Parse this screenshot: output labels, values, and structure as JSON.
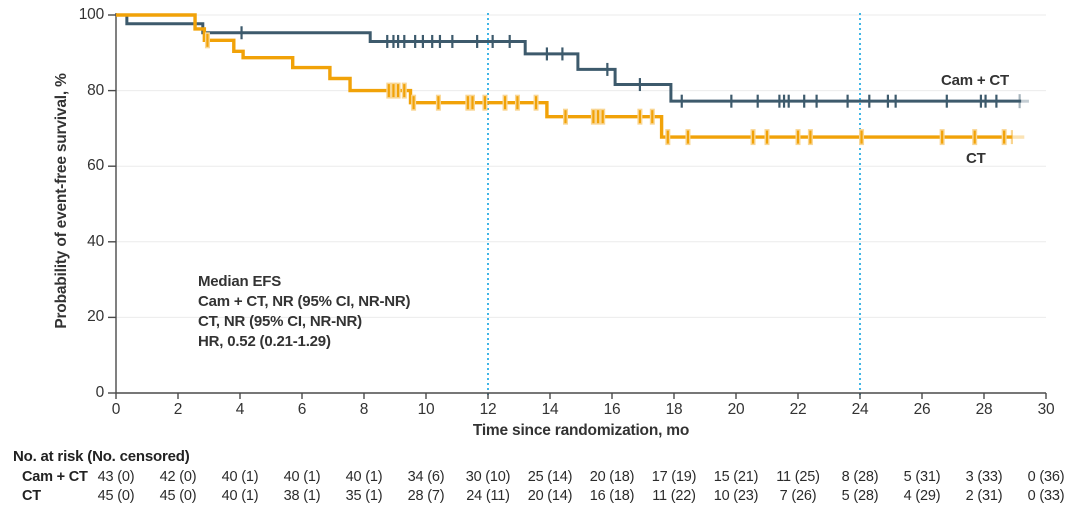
{
  "chart_data": {
    "type": "line",
    "subtype": "kaplan-meier-step-curves",
    "title": "",
    "xlabel": "Time since randomization, mo",
    "ylabel": "Probability of event-free survival, %",
    "xlim": [
      0,
      30
    ],
    "ylim": [
      0,
      100
    ],
    "x_ticks": [
      0,
      2,
      4,
      6,
      8,
      10,
      12,
      14,
      16,
      18,
      20,
      22,
      24,
      26,
      28,
      30
    ],
    "y_ticks": [
      0,
      20,
      40,
      60,
      80,
      100
    ],
    "grid": "horizontal-light",
    "grid_color": "#ebebeb",
    "axis_color": "#4a4a4a",
    "reference_lines_x": [
      12,
      24
    ],
    "reference_line_color": "#41b6e6",
    "series": [
      {
        "name": "Cam + CT",
        "color": "#3d5a6c",
        "steps": [
          [
            0,
            100
          ],
          [
            0.35,
            97.7
          ],
          [
            2.8,
            95.3
          ],
          [
            8.2,
            93
          ],
          [
            13.2,
            89.7
          ],
          [
            14.9,
            85.6
          ],
          [
            16.1,
            81.6
          ],
          [
            17.9,
            77.2
          ]
        ],
        "end_x": 29.2,
        "tail_x": 29.45,
        "tail_censor_x": 29.15,
        "censor_x": [
          4.05,
          8.75,
          8.95,
          9.1,
          9.3,
          9.65,
          9.9,
          10.2,
          10.45,
          10.85,
          11.65,
          12.15,
          12.7,
          13.9,
          14.4,
          15.85,
          16.9,
          18.25,
          19.85,
          20.7,
          21.4,
          21.55,
          21.7,
          22.2,
          22.6,
          23.6,
          24.3,
          24.9,
          25.15,
          26.8,
          27.9,
          28.05,
          28.4
        ]
      },
      {
        "name": "CT",
        "color": "#f1a208",
        "halo_color": "#f9d693",
        "steps": [
          [
            0,
            100
          ],
          [
            2.55,
            96.3
          ],
          [
            2.85,
            93.3
          ],
          [
            3.8,
            90.4
          ],
          [
            4.1,
            88.7
          ],
          [
            5.7,
            86.1
          ],
          [
            6.9,
            83.2
          ],
          [
            7.55,
            80
          ],
          [
            9.5,
            76.8
          ],
          [
            13.9,
            73.1
          ],
          [
            17.6,
            67.7
          ]
        ],
        "end_x": 28.9,
        "tail_x": 29.3,
        "tail_censor_x": 28.9,
        "censor_x": [
          2.95,
          8.8,
          8.95,
          9.1,
          9.3,
          9.6,
          10.4,
          11.35,
          11.5,
          11.9,
          12.55,
          12.95,
          13.55,
          14.5,
          15.4,
          15.55,
          15.7,
          16.9,
          17.3,
          17.8,
          18.45,
          20.55,
          21.0,
          22.0,
          22.4,
          24.05,
          26.65,
          27.7,
          28.65
        ]
      }
    ],
    "annotations": [
      "Median EFS",
      "Cam + CT, NR (95% CI, NR-NR)",
      "CT, NR (95% CI, NR-NR)",
      "HR, 0.52 (0.21-1.29)"
    ]
  },
  "risk_table": {
    "header": "No. at risk (No. censored)",
    "months": [
      0,
      2,
      4,
      6,
      8,
      10,
      12,
      14,
      16,
      18,
      20,
      22,
      24,
      26,
      28,
      30
    ],
    "rows": [
      {
        "label": "Cam + CT",
        "values": [
          "43 (0)",
          "42 (0)",
          "40 (1)",
          "40 (1)",
          "40 (1)",
          "34 (6)",
          "30 (10)",
          "25 (14)",
          "20 (18)",
          "17 (19)",
          "15 (21)",
          "11 (25)",
          "8 (28)",
          "5 (31)",
          "3 (33)",
          "0 (36)"
        ]
      },
      {
        "label": "CT",
        "values": [
          "45 (0)",
          "45 (0)",
          "40 (1)",
          "38 (1)",
          "35 (1)",
          "28 (7)",
          "24 (11)",
          "20 (14)",
          "16 (18)",
          "11 (22)",
          "10 (23)",
          "7 (26)",
          "5 (28)",
          "4 (29)",
          "2 (31)",
          "0 (33)"
        ]
      }
    ]
  }
}
